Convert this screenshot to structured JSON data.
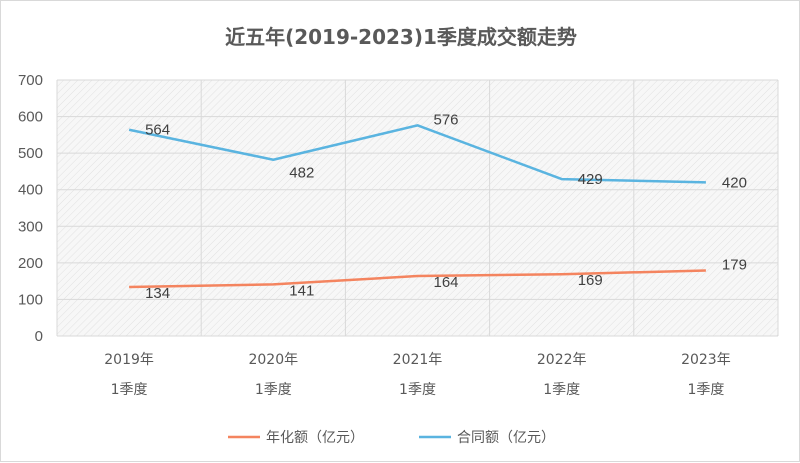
{
  "chart_data": {
    "type": "line",
    "title": "近五年(2019-2023)1季度成交额走势",
    "categories": [
      "2019年\n1季度",
      "2020年\n1季度",
      "2021年\n1季度",
      "2022年\n1季度",
      "2023年\n1季度"
    ],
    "series": [
      {
        "name": "年化额（亿元）",
        "values": [
          134,
          141,
          164,
          169,
          179
        ],
        "color": "#f4845f"
      },
      {
        "name": "合同额（亿元）",
        "values": [
          564,
          482,
          576,
          429,
          420
        ],
        "color": "#5ab4e0"
      }
    ],
    "ylim": [
      0,
      700
    ],
    "yticks": [
      0,
      100,
      200,
      300,
      400,
      500,
      600,
      700
    ],
    "grid": true,
    "legend": "bottom"
  }
}
